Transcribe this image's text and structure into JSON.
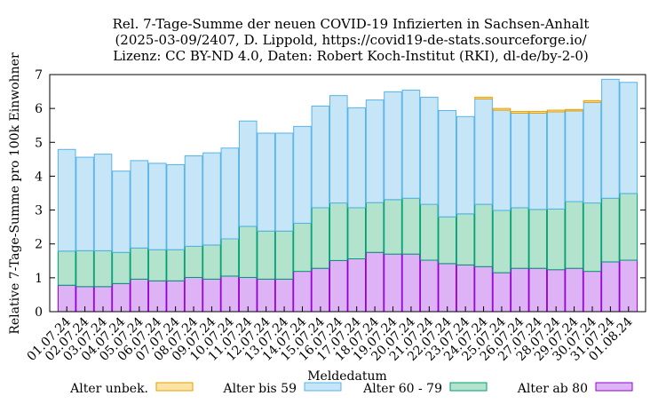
{
  "chart_data": {
    "type": "stacked-bar",
    "title_lines": [
      "Rel. 7-Tage-Summe der neuen COVID-19 Infizierten in Sachsen-Anhalt",
      "(2025-03-09/2407, D. Lippold, https://covid19-de-stats.sourceforge.io/",
      "Lizenz: CC BY-ND 4.0, Daten: Robert Koch-Institut (RKI), dl-de/by-2-0)"
    ],
    "xlabel": "Meldedatum",
    "ylabel": "Relative 7-Tage-Summe pro 100k Einwohner",
    "ylim": [
      0,
      7
    ],
    "yticks": [
      0,
      1,
      2,
      3,
      4,
      5,
      6,
      7
    ],
    "categories": [
      "01.07.24",
      "02.07.24",
      "03.07.24",
      "04.07.24",
      "05.07.24",
      "06.07.24",
      "07.07.24",
      "08.07.24",
      "09.07.24",
      "10.07.24",
      "11.07.24",
      "12.07.24",
      "13.07.24",
      "14.07.24",
      "15.07.24",
      "16.07.24",
      "17.07.24",
      "18.07.24",
      "19.07.24",
      "20.07.24",
      "21.07.24",
      "22.07.24",
      "23.07.24",
      "24.07.24",
      "25.07.24",
      "26.07.24",
      "27.07.24",
      "28.07.24",
      "29.07.24",
      "30.07.24",
      "31.07.24",
      "01.08.24"
    ],
    "series": [
      {
        "name": "Alter ab 80",
        "fill": "#deb3f5",
        "stroke": "#9400d3",
        "values": [
          0.78,
          0.74,
          0.74,
          0.83,
          0.96,
          0.91,
          0.91,
          1.01,
          0.96,
          1.05,
          1.01,
          0.96,
          0.96,
          1.19,
          1.28,
          1.51,
          1.56,
          1.75,
          1.7,
          1.7,
          1.52,
          1.42,
          1.38,
          1.33,
          1.15,
          1.28,
          1.28,
          1.24,
          1.28,
          1.19,
          1.47,
          1.52
        ]
      },
      {
        "name": "Alter 60 - 79",
        "fill": "#b3e2cd",
        "stroke": "#009e73",
        "values": [
          1.01,
          1.06,
          1.06,
          0.92,
          0.92,
          0.92,
          0.92,
          0.92,
          1.01,
          1.1,
          1.51,
          1.42,
          1.42,
          1.42,
          1.79,
          1.7,
          1.51,
          1.47,
          1.61,
          1.65,
          1.65,
          1.38,
          1.51,
          1.84,
          1.84,
          1.79,
          1.74,
          1.79,
          1.97,
          2.02,
          1.88,
          1.97
        ]
      },
      {
        "name": "Alter bis 59",
        "fill": "#c6e5f7",
        "stroke": "#56b4e9",
        "values": [
          3.0,
          2.76,
          2.85,
          2.4,
          2.58,
          2.55,
          2.51,
          2.67,
          2.72,
          2.68,
          3.11,
          2.89,
          2.89,
          2.86,
          3.0,
          3.17,
          2.95,
          3.03,
          3.18,
          3.19,
          3.16,
          3.14,
          2.87,
          3.11,
          2.96,
          2.79,
          2.84,
          2.87,
          2.68,
          2.97,
          3.51,
          3.28
        ]
      },
      {
        "name": "Alter unbek.",
        "fill": "#fbe3a6",
        "stroke": "#e69f00",
        "values": [
          0,
          0,
          0,
          0,
          0,
          0,
          0,
          0,
          0,
          0,
          0,
          0,
          0,
          0,
          0,
          0,
          0,
          0,
          0,
          0,
          0,
          0,
          0,
          0.05,
          0.05,
          0.05,
          0.05,
          0.05,
          0.04,
          0.05,
          0,
          0
        ]
      }
    ],
    "legend_order": [
      "Alter unbek.",
      "Alter bis 59",
      "Alter 60 - 79",
      "Alter ab 80"
    ],
    "legend_placement": "bottom"
  }
}
